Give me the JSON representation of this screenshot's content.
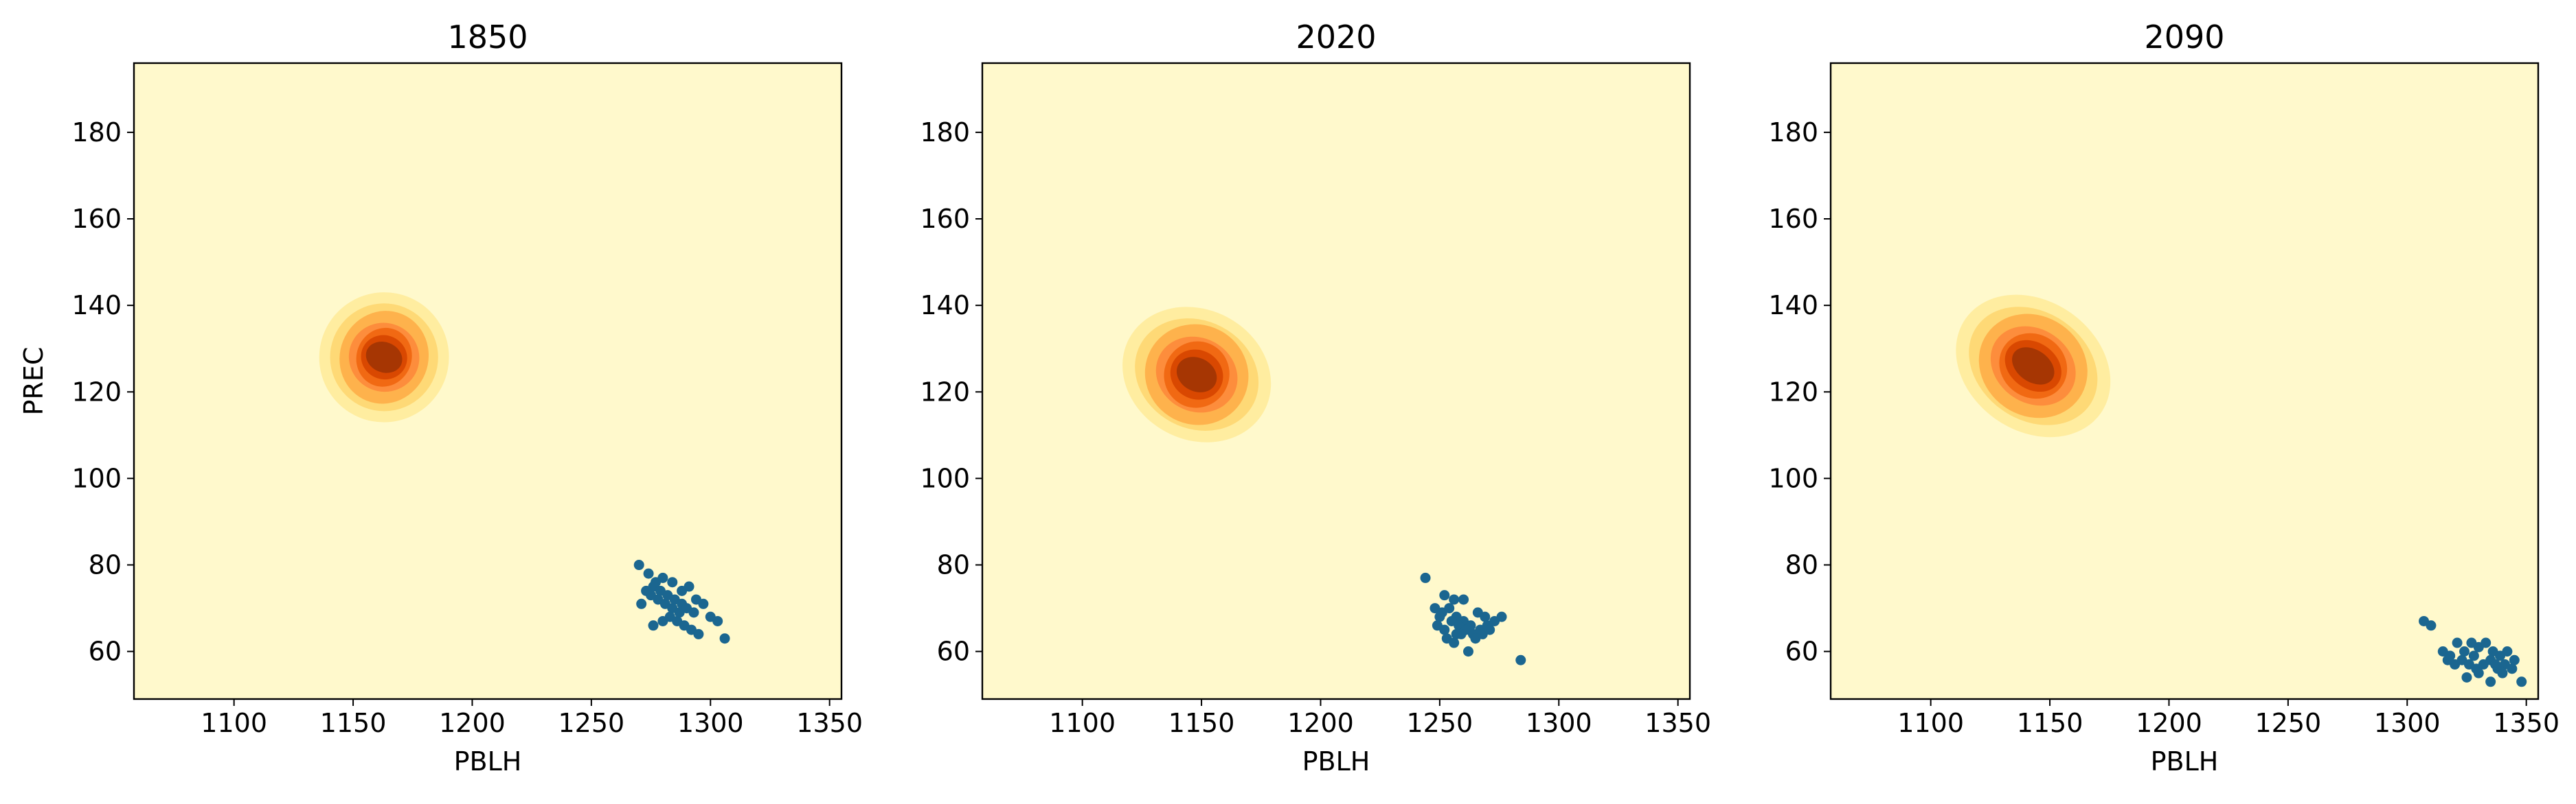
{
  "figure": {
    "ylabel": "PREC"
  },
  "colors": {
    "background": "#fff9cc",
    "point": "#1b6690",
    "levels": [
      "#fff9cc",
      "#ffeda0",
      "#fed976",
      "#feb24c",
      "#fd8d3c",
      "#f16913",
      "#d94801",
      "#a63603",
      "#7f2704"
    ]
  },
  "chart_data": [
    {
      "type": "contour+scatter",
      "title": "1850",
      "xlabel": "PBLH",
      "ylabel": "PREC",
      "xlim": [
        1058,
        1355
      ],
      "ylim": [
        49,
        196
      ],
      "xticks": [
        1100,
        1150,
        1200,
        1250,
        1300,
        1350
      ],
      "yticks": [
        60,
        80,
        100,
        120,
        140,
        160,
        180
      ],
      "density": {
        "center": [
          1163,
          128
        ],
        "angle_deg": -68,
        "spread_major": [
          14,
          14,
          15,
          14,
          16,
          17,
          19
        ],
        "spread_minor": [
          1.1,
          1.1,
          1.1,
          1.1,
          1.1,
          1.3,
          1.6
        ]
      },
      "contour_levels": 8,
      "points": [
        [
          1270,
          80
        ],
        [
          1274,
          78
        ],
        [
          1277,
          76
        ],
        [
          1280,
          77
        ],
        [
          1284,
          76
        ],
        [
          1288,
          74
        ],
        [
          1291,
          75
        ],
        [
          1294,
          72
        ],
        [
          1276,
          75
        ],
        [
          1279,
          74
        ],
        [
          1282,
          73
        ],
        [
          1285,
          72
        ],
        [
          1288,
          71
        ],
        [
          1271,
          71
        ],
        [
          1275,
          73
        ],
        [
          1278,
          72
        ],
        [
          1281,
          71
        ],
        [
          1284,
          70
        ],
        [
          1287,
          69
        ],
        [
          1290,
          70
        ],
        [
          1293,
          69
        ],
        [
          1276,
          66
        ],
        [
          1280,
          67
        ],
        [
          1283,
          68
        ],
        [
          1286,
          67
        ],
        [
          1289,
          66
        ],
        [
          1292,
          65
        ],
        [
          1297,
          71
        ],
        [
          1300,
          68
        ],
        [
          1303,
          67
        ],
        [
          1295,
          64
        ],
        [
          1306,
          63
        ],
        [
          1273,
          74
        ]
      ]
    },
    {
      "type": "contour+scatter",
      "title": "2020",
      "xlabel": "PBLH",
      "ylabel": "",
      "xlim": [
        1058,
        1355
      ],
      "ylim": [
        49,
        196
      ],
      "xticks": [
        1100,
        1150,
        1200,
        1250,
        1300,
        1350
      ],
      "yticks": [
        60,
        80,
        100,
        120,
        140,
        160,
        180
      ],
      "density": {
        "center": [
          1148,
          124
        ],
        "angle_deg": -62,
        "spread_major": [
          14,
          14,
          16,
          15,
          18,
          19,
          21
        ],
        "spread_minor": [
          1.3,
          1.3,
          1.3,
          1.3,
          1.3,
          1.5,
          1.8
        ]
      },
      "contour_levels": 8,
      "points": [
        [
          1244,
          77
        ],
        [
          1252,
          73
        ],
        [
          1256,
          72
        ],
        [
          1260,
          72
        ],
        [
          1248,
          70
        ],
        [
          1251,
          69
        ],
        [
          1254,
          70
        ],
        [
          1257,
          68
        ],
        [
          1260,
          67
        ],
        [
          1263,
          66
        ],
        [
          1249,
          66
        ],
        [
          1252,
          65
        ],
        [
          1255,
          67
        ],
        [
          1258,
          66
        ],
        [
          1261,
          65
        ],
        [
          1264,
          64
        ],
        [
          1267,
          65
        ],
        [
          1270,
          66
        ],
        [
          1273,
          67
        ],
        [
          1276,
          68
        ],
        [
          1266,
          69
        ],
        [
          1269,
          68
        ],
        [
          1253,
          63
        ],
        [
          1256,
          62
        ],
        [
          1259,
          64
        ],
        [
          1262,
          60
        ],
        [
          1265,
          63
        ],
        [
          1268,
          64
        ],
        [
          1271,
          65
        ],
        [
          1284,
          58
        ],
        [
          1250,
          68
        ],
        [
          1257,
          64
        ]
      ]
    },
    {
      "type": "contour+scatter",
      "title": "2090",
      "xlabel": "PBLH",
      "ylabel": "",
      "xlim": [
        1058,
        1355
      ],
      "ylim": [
        49,
        196
      ],
      "xticks": [
        1100,
        1150,
        1200,
        1250,
        1300,
        1350
      ],
      "yticks": [
        60,
        80,
        100,
        120,
        140,
        160,
        180
      ],
      "density": {
        "center": [
          1143,
          126
        ],
        "angle_deg": -55,
        "spread_major": [
          14,
          14,
          16,
          15,
          17,
          18,
          20
        ],
        "spread_minor": [
          1.4,
          1.4,
          1.4,
          1.4,
          1.4,
          1.7,
          2.0
        ]
      },
      "contour_levels": 8,
      "points": [
        [
          1307,
          67
        ],
        [
          1310,
          66
        ],
        [
          1315,
          60
        ],
        [
          1318,
          59
        ],
        [
          1321,
          62
        ],
        [
          1324,
          60
        ],
        [
          1327,
          62
        ],
        [
          1330,
          61
        ],
        [
          1333,
          62
        ],
        [
          1336,
          60
        ],
        [
          1339,
          59
        ],
        [
          1342,
          60
        ],
        [
          1320,
          57
        ],
        [
          1323,
          58
        ],
        [
          1326,
          57
        ],
        [
          1329,
          56
        ],
        [
          1332,
          57
        ],
        [
          1335,
          58
        ],
        [
          1338,
          56
        ],
        [
          1341,
          57
        ],
        [
          1344,
          56
        ],
        [
          1325,
          54
        ],
        [
          1330,
          55
        ],
        [
          1335,
          53
        ],
        [
          1340,
          55
        ],
        [
          1348,
          53
        ],
        [
          1317,
          58
        ],
        [
          1328,
          59
        ],
        [
          1337,
          57
        ],
        [
          1345,
          58
        ]
      ]
    }
  ]
}
